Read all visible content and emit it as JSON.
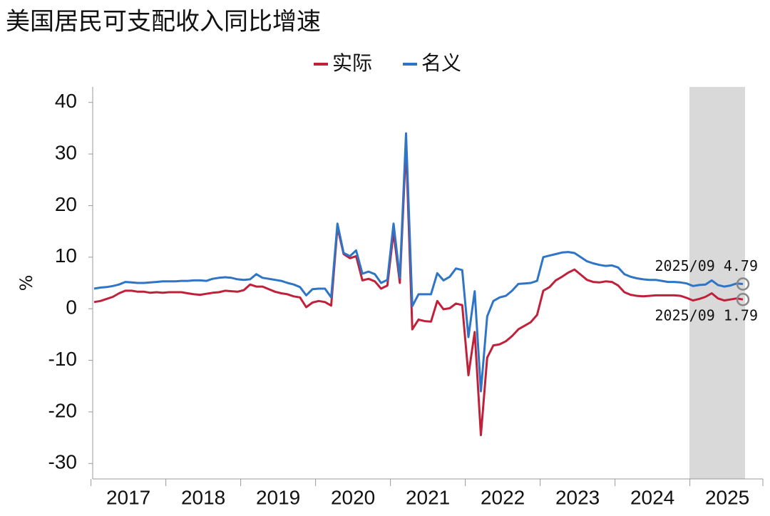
{
  "chart_data": {
    "type": "line",
    "title": "美国居民可支配收入同比增速",
    "ylabel": "%",
    "categories": [
      "2017/01",
      "2017/02",
      "2017/03",
      "2017/04",
      "2017/05",
      "2017/06",
      "2017/07",
      "2017/08",
      "2017/09",
      "2017/10",
      "2017/11",
      "2017/12",
      "2018/01",
      "2018/02",
      "2018/03",
      "2018/04",
      "2018/05",
      "2018/06",
      "2018/07",
      "2018/08",
      "2018/09",
      "2018/10",
      "2018/11",
      "2018/12",
      "2019/01",
      "2019/02",
      "2019/03",
      "2019/04",
      "2019/05",
      "2019/06",
      "2019/07",
      "2019/08",
      "2019/09",
      "2019/10",
      "2019/11",
      "2019/12",
      "2020/01",
      "2020/02",
      "2020/03",
      "2020/04",
      "2020/05",
      "2020/06",
      "2020/07",
      "2020/08",
      "2020/09",
      "2020/10",
      "2020/11",
      "2020/12",
      "2021/01",
      "2021/02",
      "2021/03",
      "2021/04",
      "2021/05",
      "2021/06",
      "2021/07",
      "2021/08",
      "2021/09",
      "2021/10",
      "2021/11",
      "2021/12",
      "2022/01",
      "2022/02",
      "2022/03",
      "2022/04",
      "2022/05",
      "2022/06",
      "2022/07",
      "2022/08",
      "2022/09",
      "2022/10",
      "2022/11",
      "2022/12",
      "2023/01",
      "2023/02",
      "2023/03",
      "2023/04",
      "2023/05",
      "2023/06",
      "2023/07",
      "2023/08",
      "2023/09",
      "2023/10",
      "2023/11",
      "2023/12",
      "2024/01",
      "2024/02",
      "2024/03",
      "2024/04",
      "2024/05",
      "2024/06",
      "2024/07",
      "2024/08",
      "2024/09",
      "2024/10",
      "2024/11",
      "2024/12",
      "2025/01",
      "2025/02",
      "2025/03",
      "2025/04",
      "2025/05",
      "2025/06",
      "2025/07",
      "2025/08",
      "2025/09"
    ],
    "year_labels": [
      "2017",
      "2018",
      "2019",
      "2020",
      "2021",
      "2022",
      "2023",
      "2024",
      "2025"
    ],
    "series": [
      {
        "name": "实际",
        "color": "#c0213a",
        "values": [
          1.3,
          1.5,
          1.9,
          2.3,
          3.0,
          3.5,
          3.5,
          3.3,
          3.3,
          3.1,
          3.2,
          3.1,
          3.2,
          3.2,
          3.2,
          3.0,
          2.8,
          2.7,
          2.9,
          3.1,
          3.2,
          3.5,
          3.4,
          3.3,
          3.6,
          4.7,
          4.3,
          4.3,
          3.8,
          3.3,
          3.0,
          2.8,
          2.4,
          2.2,
          0.3,
          1.2,
          1.5,
          1.3,
          0.6,
          15.8,
          10.6,
          9.8,
          10.2,
          5.5,
          5.8,
          5.3,
          3.9,
          4.5,
          14.9,
          5.0,
          31.6,
          -4.0,
          -2.1,
          -2.4,
          -2.5,
          1.5,
          -0.1,
          0.1,
          1.0,
          0.7,
          -12.9,
          -4.5,
          -24.5,
          -9.5,
          -7.1,
          -6.9,
          -6.3,
          -5.3,
          -4.0,
          -3.3,
          -2.6,
          -1.2,
          3.5,
          4.2,
          5.5,
          6.2,
          7.0,
          7.6,
          6.6,
          5.6,
          5.2,
          5.1,
          5.3,
          5.2,
          4.5,
          3.2,
          2.7,
          2.5,
          2.4,
          2.5,
          2.6,
          2.6,
          2.6,
          2.6,
          2.5,
          2.1,
          1.6,
          1.9,
          2.3,
          3.0,
          2.0,
          1.6,
          1.8,
          2.0,
          1.79
        ]
      },
      {
        "name": "名义",
        "color": "#2e75c7",
        "values": [
          3.9,
          4.1,
          4.2,
          4.4,
          4.7,
          5.2,
          5.1,
          5.0,
          5.0,
          5.1,
          5.2,
          5.3,
          5.3,
          5.3,
          5.4,
          5.4,
          5.5,
          5.5,
          5.4,
          5.8,
          6.0,
          6.1,
          6.0,
          5.7,
          5.6,
          5.7,
          6.7,
          6.0,
          5.8,
          5.6,
          5.4,
          5.0,
          4.7,
          4.2,
          2.6,
          3.8,
          3.9,
          3.9,
          2.2,
          16.5,
          10.8,
          10.2,
          11.3,
          6.8,
          7.2,
          6.7,
          5.0,
          5.6,
          16.5,
          6.0,
          34.0,
          0.5,
          2.8,
          2.8,
          2.8,
          6.9,
          5.5,
          6.2,
          7.8,
          7.5,
          -5.5,
          3.4,
          -16.0,
          -1.5,
          1.5,
          2.2,
          2.5,
          3.5,
          4.8,
          4.9,
          5.0,
          5.4,
          10.0,
          10.3,
          10.6,
          10.9,
          11.0,
          10.8,
          10.0,
          9.2,
          8.8,
          8.5,
          8.3,
          8.4,
          8.0,
          6.7,
          6.2,
          5.9,
          5.7,
          5.6,
          5.6,
          5.4,
          5.2,
          5.2,
          5.1,
          4.9,
          4.4,
          4.6,
          4.7,
          5.5,
          4.6,
          4.3,
          4.5,
          4.9,
          4.79
        ]
      }
    ],
    "annotations": [
      "2025/09  4.79",
      "2025/09  1.79"
    ],
    "highlight": {
      "from": "2025/01",
      "to": "2025/09",
      "color": "#d9d9d9"
    },
    "ylim": [
      -33,
      43
    ],
    "yticks": [
      -30,
      -20,
      -10,
      0,
      10,
      20,
      30,
      40
    ]
  }
}
